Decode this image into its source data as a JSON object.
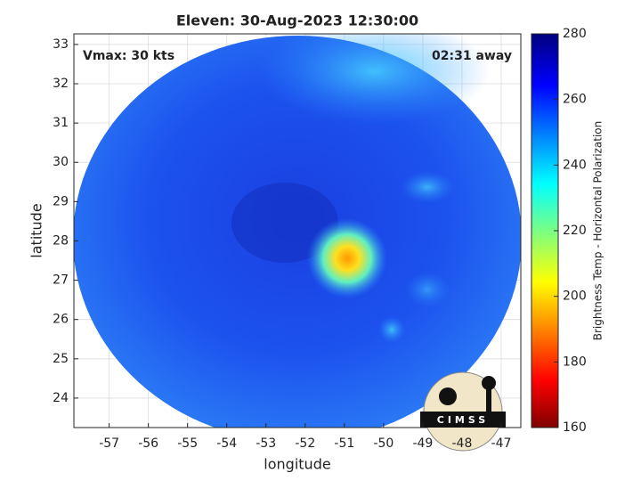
{
  "chart_data": {
    "type": "map",
    "title": "Eleven: 30-Aug-2023 12:30:00",
    "annotations": [
      "Vmax: 30 kts",
      "02:31 away"
    ],
    "xlabel": "longitude",
    "ylabel": "latitude",
    "xlim": [
      -57.9,
      -46.5
    ],
    "xticks": [
      -57,
      -56,
      -55,
      -54,
      -53,
      -52,
      -51,
      -50,
      -49,
      -48,
      -47
    ],
    "ylim": [
      23.25,
      33.27
    ],
    "yticks": [
      24,
      25,
      26,
      27,
      28,
      29,
      30,
      31,
      32,
      33
    ],
    "grid": true,
    "colorbar": {
      "label": "Brightness Temp - Horizontal Polarization",
      "lim": [
        160,
        280
      ],
      "ticks": [
        160,
        180,
        200,
        220,
        240,
        260,
        280
      ]
    },
    "logo": "CIMSS"
  }
}
